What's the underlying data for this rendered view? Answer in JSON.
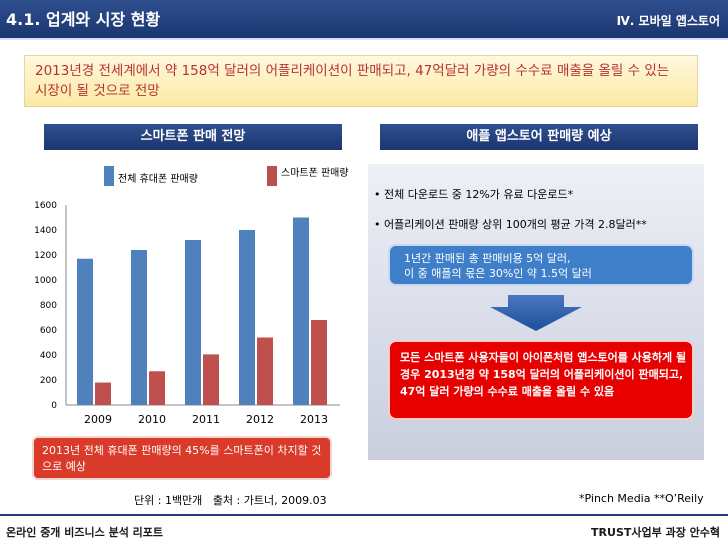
{
  "header": {
    "title": "4.1. 업계와 시장 현황",
    "section": "Ⅳ. 모바일 앱스토어"
  },
  "summary": {
    "text": "2013년경 전세계에서 약 158억 달러의 어플리케이션이 판매되고, 47억달러 가량의 수수료 매출을 올릴 수 있는 시장이 될 것으로 전망"
  },
  "left_panel": {
    "header": "스마트폰 판매 전망",
    "note": "2013년 전체 휴대폰 판매량의 45%를 스마트폰이 차지할 것으로 예상",
    "unit": "단위 : 1백만개",
    "source": "출처 : 가트너, 2009.03"
  },
  "right_panel": {
    "header": "애플 앱스토어 판매량 예상",
    "bullets": [
      "• 전체 다운로드 중 12%가 유료 다운로드*",
      "• 어플리케이션 판매량 상위 100개의 평균 가격 2.8달러**"
    ],
    "blue_box": {
      "line1": "1년간 판매된 총 판매비용 5억 달러,",
      "line2": "이 중 애플의 몫은 30%인 약 1.5억 달러"
    },
    "red_box": "모든 스마트폰 사용자들이 아이폰처럼 앱스토어를 사용하게 될 경우 2013년경 약 158억 달러의 어플리케이션이 판매되고, 47억 달러 가량의 수수료 매출을 올릴 수 있음",
    "footnote": "*Pinch Media  **O’Reily"
  },
  "footer": {
    "left": "온라인 중개 비즈니스 분석 리포트",
    "right": "TRUST사업부 과장 안수혁"
  },
  "colors": {
    "header_blue": "#1f3e7c",
    "series_total": "#4f81bd",
    "series_smart": "#c0504d",
    "note_red": "#d93a2a",
    "box_blue": "#3f7fca",
    "box_red": "#e60000"
  },
  "icons": {
    "arrow": "down-arrow-icon"
  },
  "chart_data": {
    "type": "bar",
    "categories": [
      "2009",
      "2010",
      "2011",
      "2012",
      "2013"
    ],
    "series": [
      {
        "name": "전체 휴대폰 판매량",
        "values": [
          1170,
          1240,
          1320,
          1400,
          1500
        ]
      },
      {
        "name": "스마트폰 판매량",
        "values": [
          180,
          270,
          405,
          540,
          680
        ]
      }
    ],
    "yticks": [
      "0",
      "200",
      "400",
      "600",
      "800",
      "1000",
      "1200",
      "1400",
      "1600"
    ],
    "ylim": [
      0,
      1600
    ],
    "grid": false,
    "legend": "top"
  }
}
